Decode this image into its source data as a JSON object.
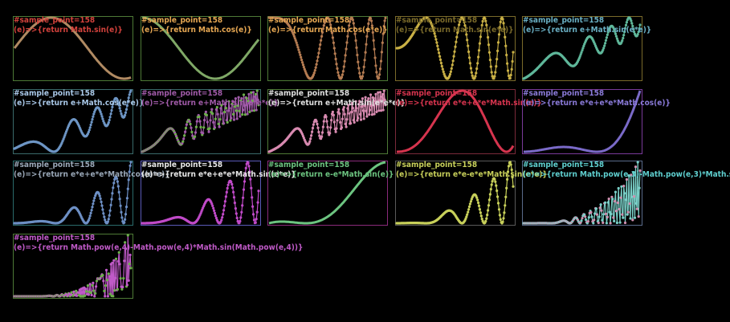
{
  "sample_label": "#sample_point=158",
  "chart_data": [
    {
      "type": "line",
      "sample_points": 158,
      "expr": "(e)=>{return Math.sin(e)}",
      "line_color": "#b08a62",
      "frame_color": "#4e7a36",
      "label_color": "#d3423c",
      "points_shown": false
    },
    {
      "type": "line",
      "sample_points": 158,
      "expr": "(e)=>{return Math.cos(e)}",
      "line_color": "#7fa866",
      "frame_color": "#4e7a36",
      "label_color": "#e7a853",
      "points_shown": false
    },
    {
      "type": "line",
      "sample_points": 158,
      "expr": "(e)=>{return Math.cos(e*e)}",
      "line_color": "#b57c52",
      "frame_color": "#4e7a36",
      "label_color": "#e7a853",
      "points_shown": true
    },
    {
      "type": "line",
      "sample_points": 158,
      "expr": "(e)=>{return Math.sin(e*e)}",
      "line_color": "#c9b045",
      "frame_color": "#7a6a2a",
      "label_color": "#7a6a2a",
      "points_shown": true
    },
    {
      "type": "line",
      "sample_points": 158,
      "expr": "(e)=>{return e+Math.sin(e*e)}",
      "line_color": "#5fb79a",
      "frame_color": "#7a6a2a",
      "label_color": "#6ab0c4",
      "points_shown": true
    },
    {
      "type": "line",
      "sample_points": 158,
      "expr": "(e)=>{return e+Math.cos(e*e)}",
      "line_color": "#6d95c4",
      "frame_color": "#3a6a6a",
      "label_color": "#a9c8e8",
      "points_shown": true
    },
    {
      "type": "line",
      "sample_points": 158,
      "expr": "(e)=>{return e+Math.sin(e*e*e)}",
      "line_color": "#a05aa8",
      "frame_color": "#3a6a6a",
      "label_color": "#a05aa8",
      "points_shown": true,
      "second_color": "#6cb04a"
    },
    {
      "type": "line",
      "sample_points": 158,
      "expr": "(e)=>{return e+Math.sin(e*e*e)}",
      "line_color": "#d88ab0",
      "frame_color": "#4e7a36",
      "label_color": "#e0e0e0",
      "points_shown": true
    },
    {
      "type": "line",
      "sample_points": 158,
      "expr": "(e)=>{return e*e+e*e*Math.sin(e)}",
      "line_color": "#d6344e",
      "frame_color": "#7a2a3a",
      "label_color": "#d6344e",
      "points_shown": false
    },
    {
      "type": "line",
      "sample_points": 158,
      "expr": "(e)=>{return e*e+e*e*Math.cos(e)}",
      "line_color": "#7a6ac8",
      "frame_color": "#7a3a9a",
      "label_color": "#8a7ad8",
      "points_shown": false
    },
    {
      "type": "line",
      "sample_points": 158,
      "expr": "(e)=>{return e*e+e*e*Math.cos(e*e)}",
      "line_color": "#6d8fc4",
      "frame_color": "#2a6a6a",
      "label_color": "#9aa8b8",
      "points_shown": true
    },
    {
      "type": "line",
      "sample_points": 158,
      "expr": "(e)=>{return e*e+e*e*Math.sin(e*e)}",
      "line_color": "#c04ac8",
      "frame_color": "#5a5ab8",
      "label_color": "#e8e8e8",
      "points_shown": true
    },
    {
      "type": "line",
      "sample_points": 158,
      "expr": "(e)=>{return e-e*Math.sin(e)}",
      "line_color": "#6cc480",
      "frame_color": "#8a2a7a",
      "label_color": "#6cc480",
      "points_shown": false
    },
    {
      "type": "line",
      "sample_points": 158,
      "expr": "(e)=>{return e*e-e*e*Math.sin(e*e)}",
      "line_color": "#c8d05a",
      "frame_color": "#5a5a5a",
      "label_color": "#c8d05a",
      "points_shown": true
    },
    {
      "type": "line",
      "sample_points": 158,
      "expr": "(e)=>{return Math.pow(e,3)-Math.pow(e,3)*Math.sin(Math.pow(e,3))}",
      "line_color": "#7ad0c8",
      "frame_color": "#5a6a8a",
      "label_color": "#5fd0d0",
      "points_shown": true,
      "second_color": "#d090b0"
    },
    {
      "type": "line",
      "sample_points": 158,
      "expr": "(e)=>{return Math.pow(e,4)-Math.pow(e,4)*Math.sin(Math.pow(e,4))}",
      "line_color": "#c05ac8",
      "frame_color": "#4e7a36",
      "label_color": "#c05ac8",
      "points_shown": true,
      "second_color": "#6cb04a"
    }
  ]
}
